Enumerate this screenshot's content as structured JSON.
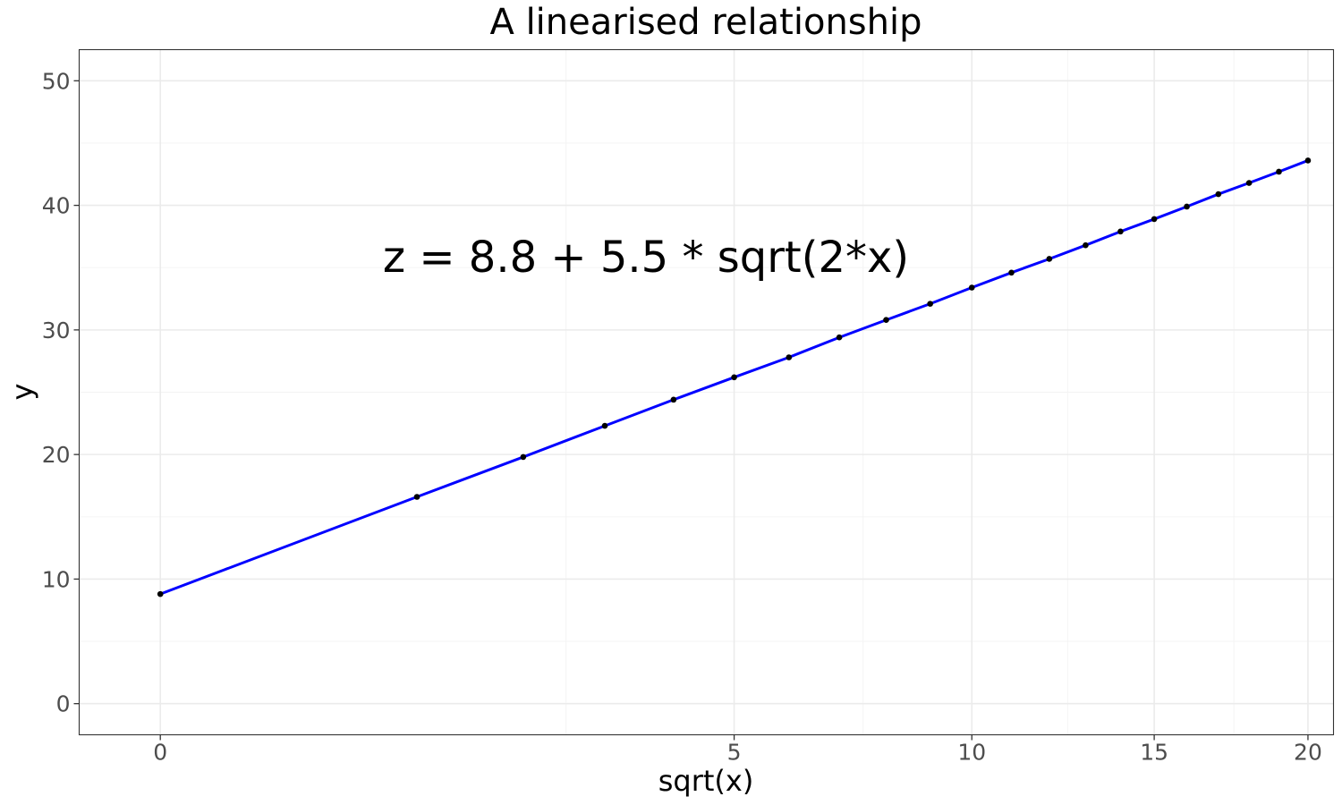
{
  "chart_data": {
    "type": "line",
    "title": "A linearised relationship",
    "xlabel": "sqrt(x)",
    "ylabel": "y",
    "x_axis_scale": "square root",
    "xlim": [
      -0.1,
      20.9
    ],
    "ylim": [
      -2.5,
      52.5
    ],
    "x_ticks": [
      0,
      5,
      10,
      15,
      20
    ],
    "x_tick_labels": [
      "0",
      "5",
      "10",
      "15",
      "20"
    ],
    "y_ticks": [
      0,
      10,
      20,
      30,
      40,
      50
    ],
    "y_tick_labels": [
      "0",
      "10",
      "20",
      "30",
      "40",
      "50"
    ],
    "grid": true,
    "legend": "none",
    "annotation": "z = 8.8 + 5.5 * sqrt(2*x)",
    "line_color": "#0000ff",
    "point_color": "#000000",
    "series": [
      {
        "x": [
          0,
          1,
          2,
          3,
          4,
          5,
          6,
          7,
          8,
          9,
          10,
          11,
          12,
          13,
          14,
          15,
          16,
          17,
          18,
          19,
          20
        ],
        "y": [
          8.8,
          16.6,
          19.8,
          22.3,
          24.4,
          26.2,
          27.8,
          29.4,
          30.8,
          32.1,
          33.4,
          34.6,
          35.7,
          36.8,
          37.9,
          38.9,
          39.9,
          40.9,
          41.8,
          42.7,
          43.6
        ]
      }
    ]
  }
}
